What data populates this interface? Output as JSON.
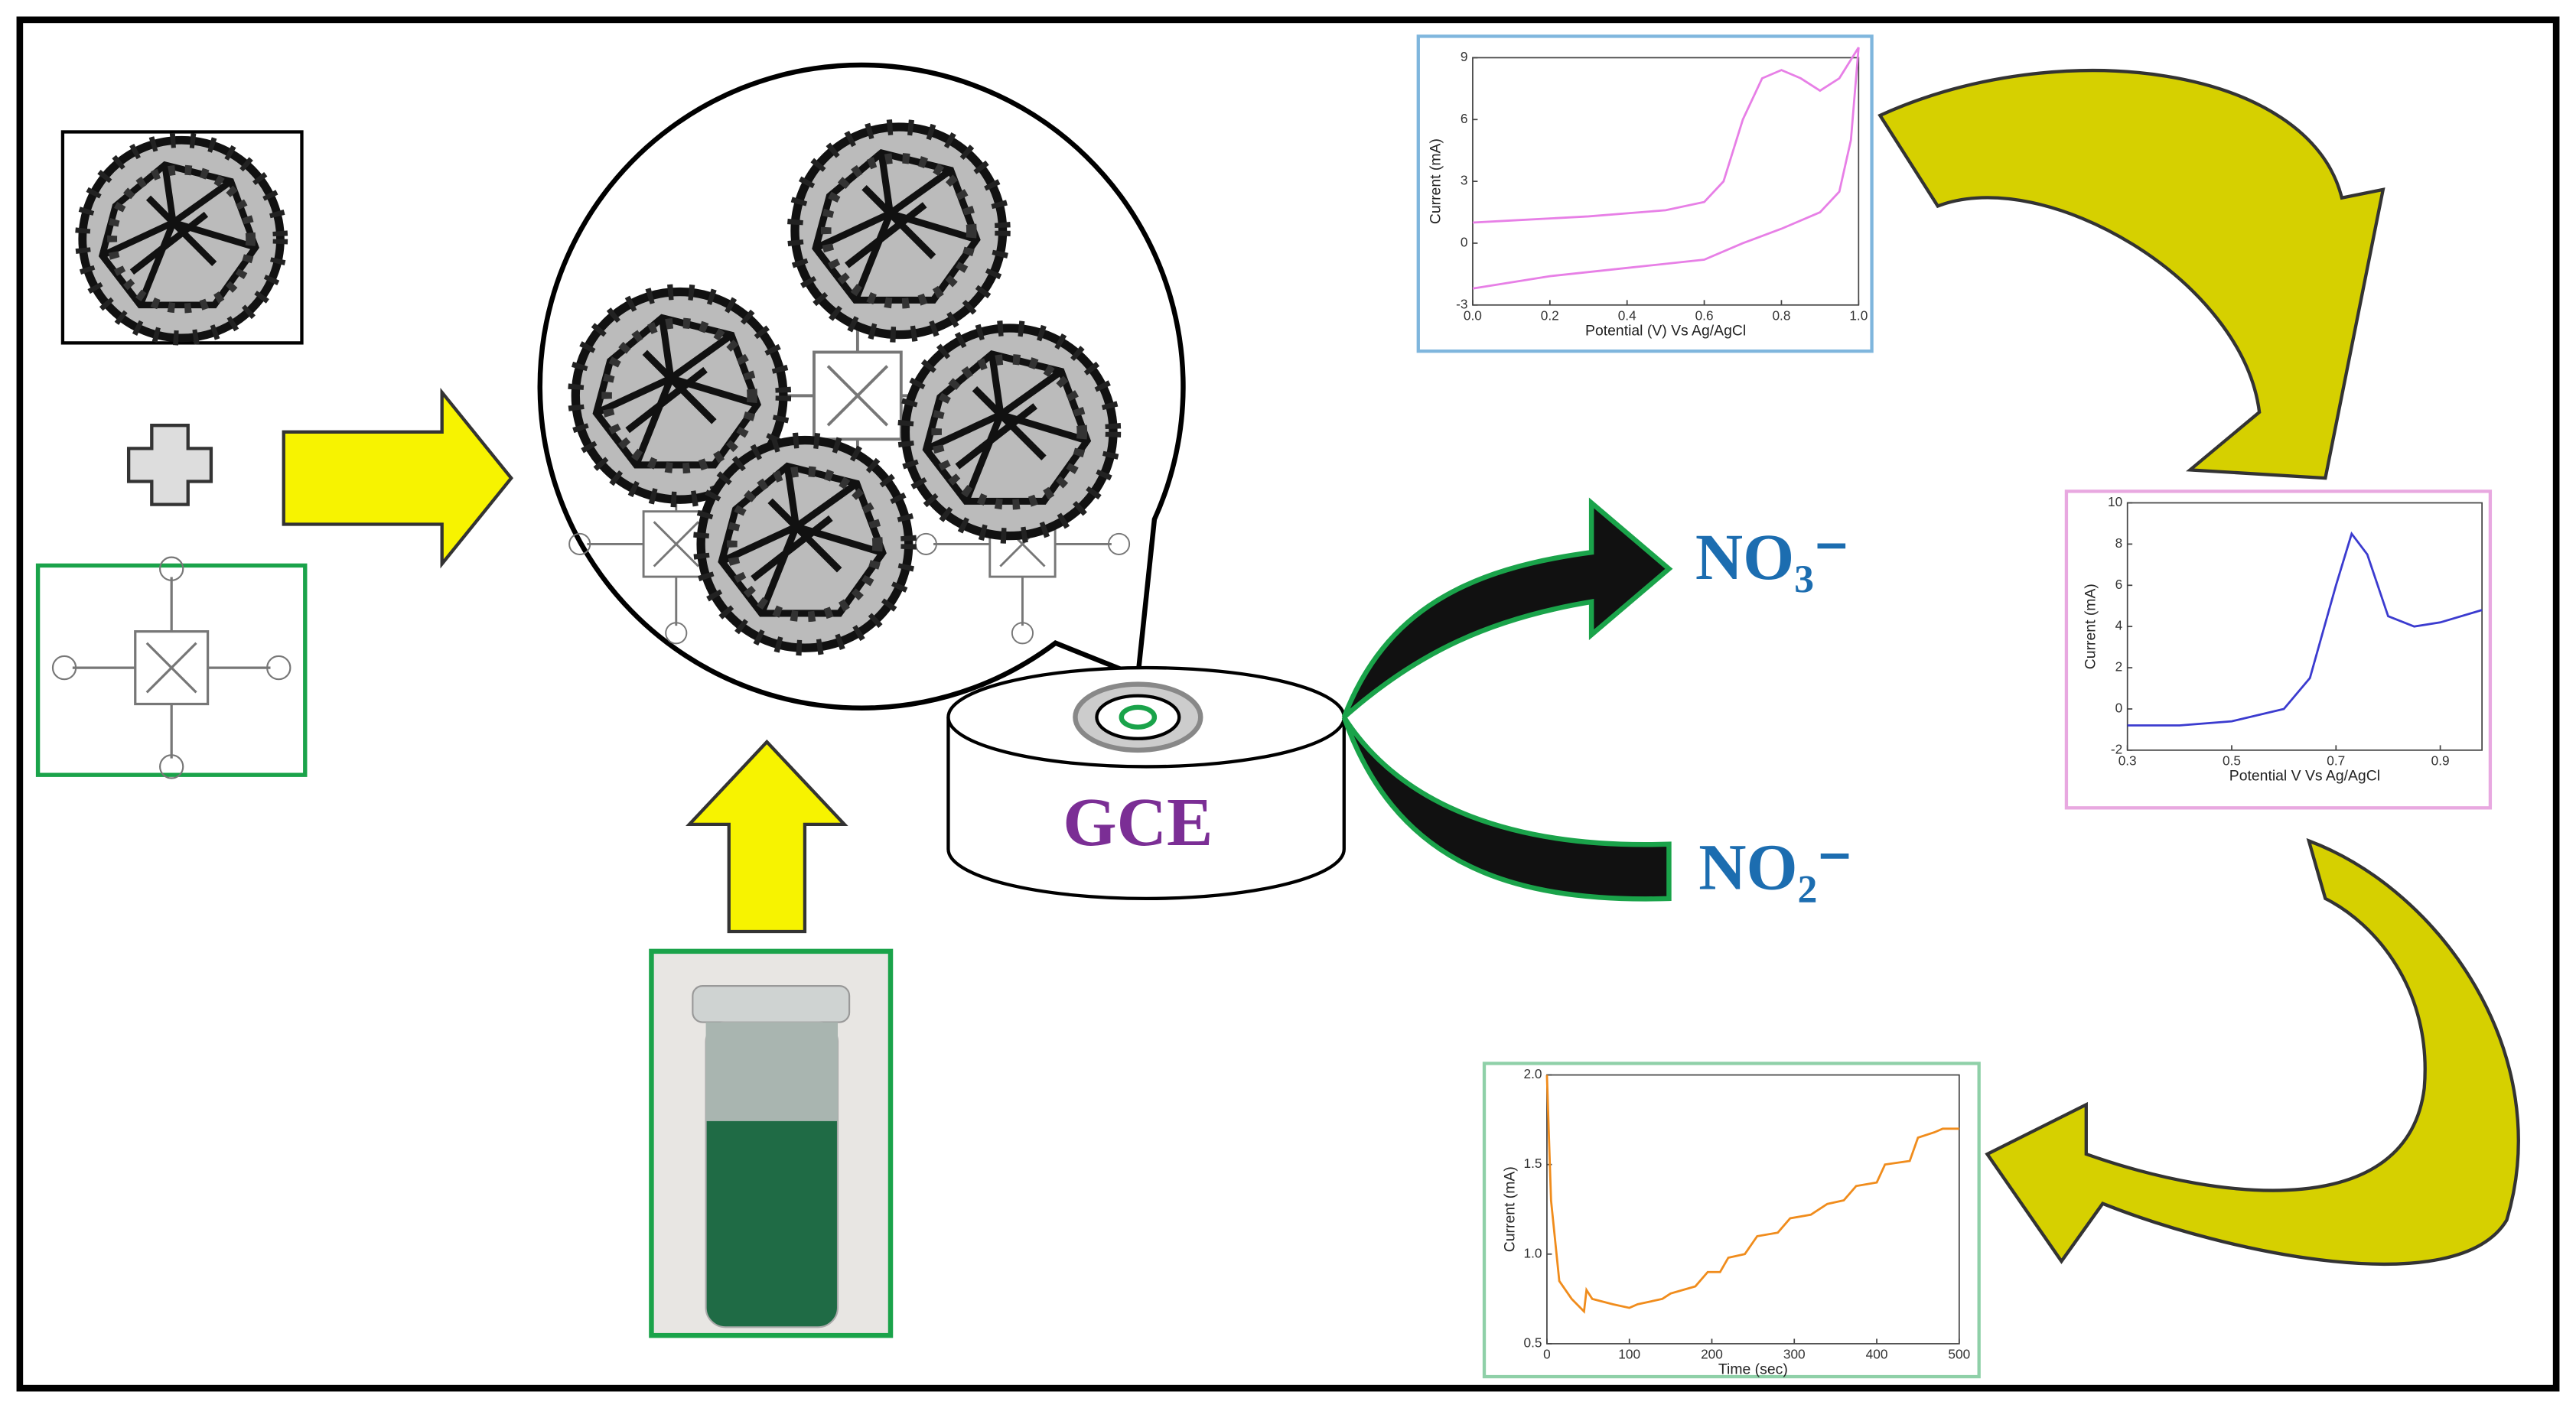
{
  "labels": {
    "electrode": "GCE",
    "nitrate": "NO₃⁻",
    "nitrite": "NO₂⁻"
  },
  "chart_data": [
    {
      "type": "line",
      "x_label": "Potential (V) Vs Ag/AgCl",
      "y_label": "Current (mA)",
      "color": "#e77fe6",
      "x": [
        0,
        0.1,
        0.3,
        0.5,
        0.6,
        0.65,
        0.7,
        0.75,
        0.8,
        0.85,
        0.9,
        0.95,
        1.0,
        0.98,
        0.95,
        0.9,
        0.8,
        0.7,
        0.6,
        0.4,
        0.2,
        0
      ],
      "values": [
        1,
        1.1,
        1.3,
        1.6,
        2,
        3,
        6,
        8,
        8.4,
        8,
        7.4,
        8,
        9.5,
        5,
        2.5,
        1.5,
        0.7,
        0,
        -0.8,
        -1.2,
        -1.6,
        -2.2
      ],
      "xlim": [
        0,
        1
      ],
      "xticks": [
        {
          "value": 0,
          "label": "0.0"
        },
        0.2,
        0.4,
        0.6,
        0.8,
        {
          "value": 1,
          "label": "1.0"
        }
      ],
      "ylim": [
        -3,
        9
      ],
      "yticks": [
        -3,
        0,
        3,
        6,
        9
      ]
    },
    {
      "type": "line",
      "x_label": "Potential V Vs Ag/AgCl",
      "y_label": "Current (mA)",
      "color": "#3b3bcf",
      "x": [
        0.3,
        0.4,
        0.5,
        0.6,
        0.65,
        0.7,
        0.73,
        0.76,
        0.8,
        0.85,
        0.9,
        0.98
      ],
      "values": [
        -0.8,
        -0.8,
        -0.6,
        0,
        1.5,
        6,
        8.5,
        7.5,
        4.5,
        4,
        4.2,
        4.8
      ],
      "xlim": [
        0.3,
        0.98
      ],
      "xticks": [
        0.3,
        0.5,
        0.7,
        0.9
      ],
      "ylim": [
        -2,
        10
      ],
      "yticks": [
        -2,
        0,
        2,
        4,
        6,
        8,
        10
      ]
    },
    {
      "type": "line",
      "x_label": "Time (sec)",
      "y_label": "Current (mA)",
      "color": "#f08c1c",
      "x": [
        0,
        5,
        15,
        30,
        45,
        48,
        55,
        80,
        100,
        110,
        140,
        150,
        165,
        180,
        195,
        210,
        220,
        240,
        255,
        280,
        295,
        320,
        340,
        360,
        375,
        400,
        410,
        440,
        450,
        470,
        480,
        500
      ],
      "values": [
        2.0,
        1.3,
        0.85,
        0.75,
        0.68,
        0.8,
        0.75,
        0.72,
        0.7,
        0.72,
        0.75,
        0.78,
        0.8,
        0.82,
        0.9,
        0.9,
        0.98,
        1.0,
        1.1,
        1.12,
        1.2,
        1.22,
        1.28,
        1.3,
        1.38,
        1.4,
        1.5,
        1.52,
        1.65,
        1.68,
        1.7,
        1.7
      ],
      "xlim": [
        0,
        500
      ],
      "xticks": [
        0,
        100,
        200,
        300,
        400,
        500
      ],
      "ylim": [
        0.5,
        2.0
      ],
      "yticks": [
        0.5,
        {
          "value": 1,
          "label": "1.0"
        },
        1.5,
        {
          "value": 2,
          "label": "2.0"
        }
      ]
    }
  ]
}
